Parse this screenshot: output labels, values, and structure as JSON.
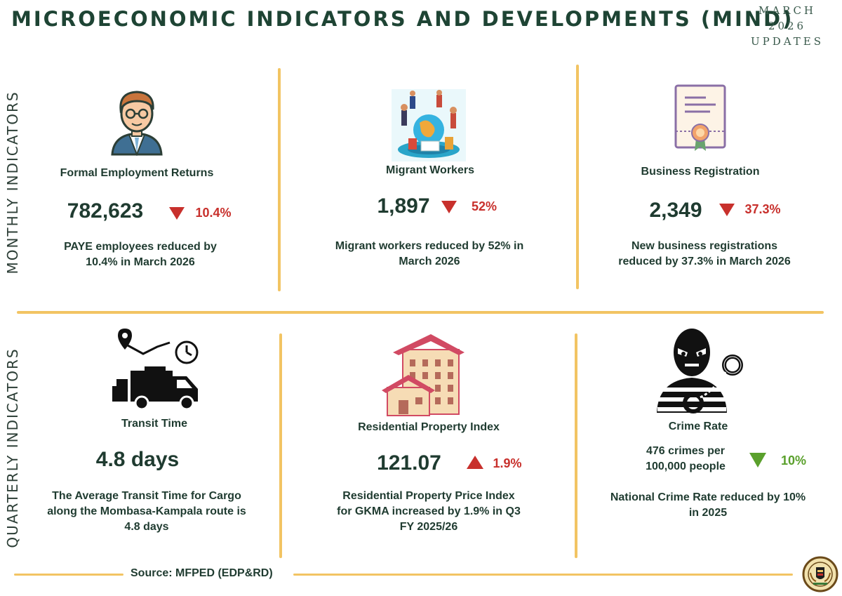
{
  "header": {
    "title": "MICROECONOMIC INDICATORS AND DEVELOPMENTS (MIND)",
    "updates_line1": "MARCH",
    "updates_line2": "2026",
    "updates_line3": "UPDATES"
  },
  "sections": {
    "monthly_label": "MONTHLY INDICATORS",
    "quarterly_label": "QUARTERLY INDICATORS"
  },
  "monthly": [
    {
      "title": "Formal Employment Returns",
      "value": "782,623",
      "change": "10.4%",
      "direction": "down",
      "desc_line1": "PAYE employees reduced by",
      "desc_line2": "10.4% in March 2026",
      "icon": "employee-icon"
    },
    {
      "title": "Migrant Workers",
      "value": "1,897",
      "change": "52%",
      "direction": "down",
      "desc_line1": "Migrant workers reduced by 52% in",
      "desc_line2": "March 2026",
      "icon": "migrant-workers-icon"
    },
    {
      "title": "Business Registration",
      "value": "2,349",
      "change": "37.3%",
      "direction": "down",
      "desc_line1": "New business registrations",
      "desc_line2": "reduced by 37.3% in March 2026",
      "icon": "certificate-icon"
    }
  ],
  "quarterly": [
    {
      "title": "Transit Time",
      "value": "4.8 days",
      "desc_line1": "The Average Transit Time for Cargo",
      "desc_line2": "along the Mombasa-Kampala route is",
      "desc_line3": "4.8 days",
      "icon": "delivery-truck-icon"
    },
    {
      "title": "Residential Property Index",
      "value": "121.07",
      "change": "1.9%",
      "direction": "up",
      "desc_line1": "Residential Property Price Index",
      "desc_line2": "for GKMA increased by 1.9% in Q3",
      "desc_line3": "FY 2025/26",
      "icon": "residential-building-icon"
    },
    {
      "title": "Crime Rate",
      "value_line1": "476 crimes per",
      "value_line2": "100,000 people",
      "change": "10%",
      "direction": "down",
      "desc_line1": "National Crime Rate reduced by 10%",
      "desc_line2": "in 2025",
      "icon": "burglar-handcuffs-icon"
    }
  ],
  "footer": {
    "source": "Source: MFPED (EDP&RD)"
  },
  "colors": {
    "title_green": "#1e4434",
    "divider_gold": "#f2c463",
    "decrease_red": "#c8302c",
    "decrease_green": "#5aa02c",
    "increase_red": "#c8302c"
  }
}
